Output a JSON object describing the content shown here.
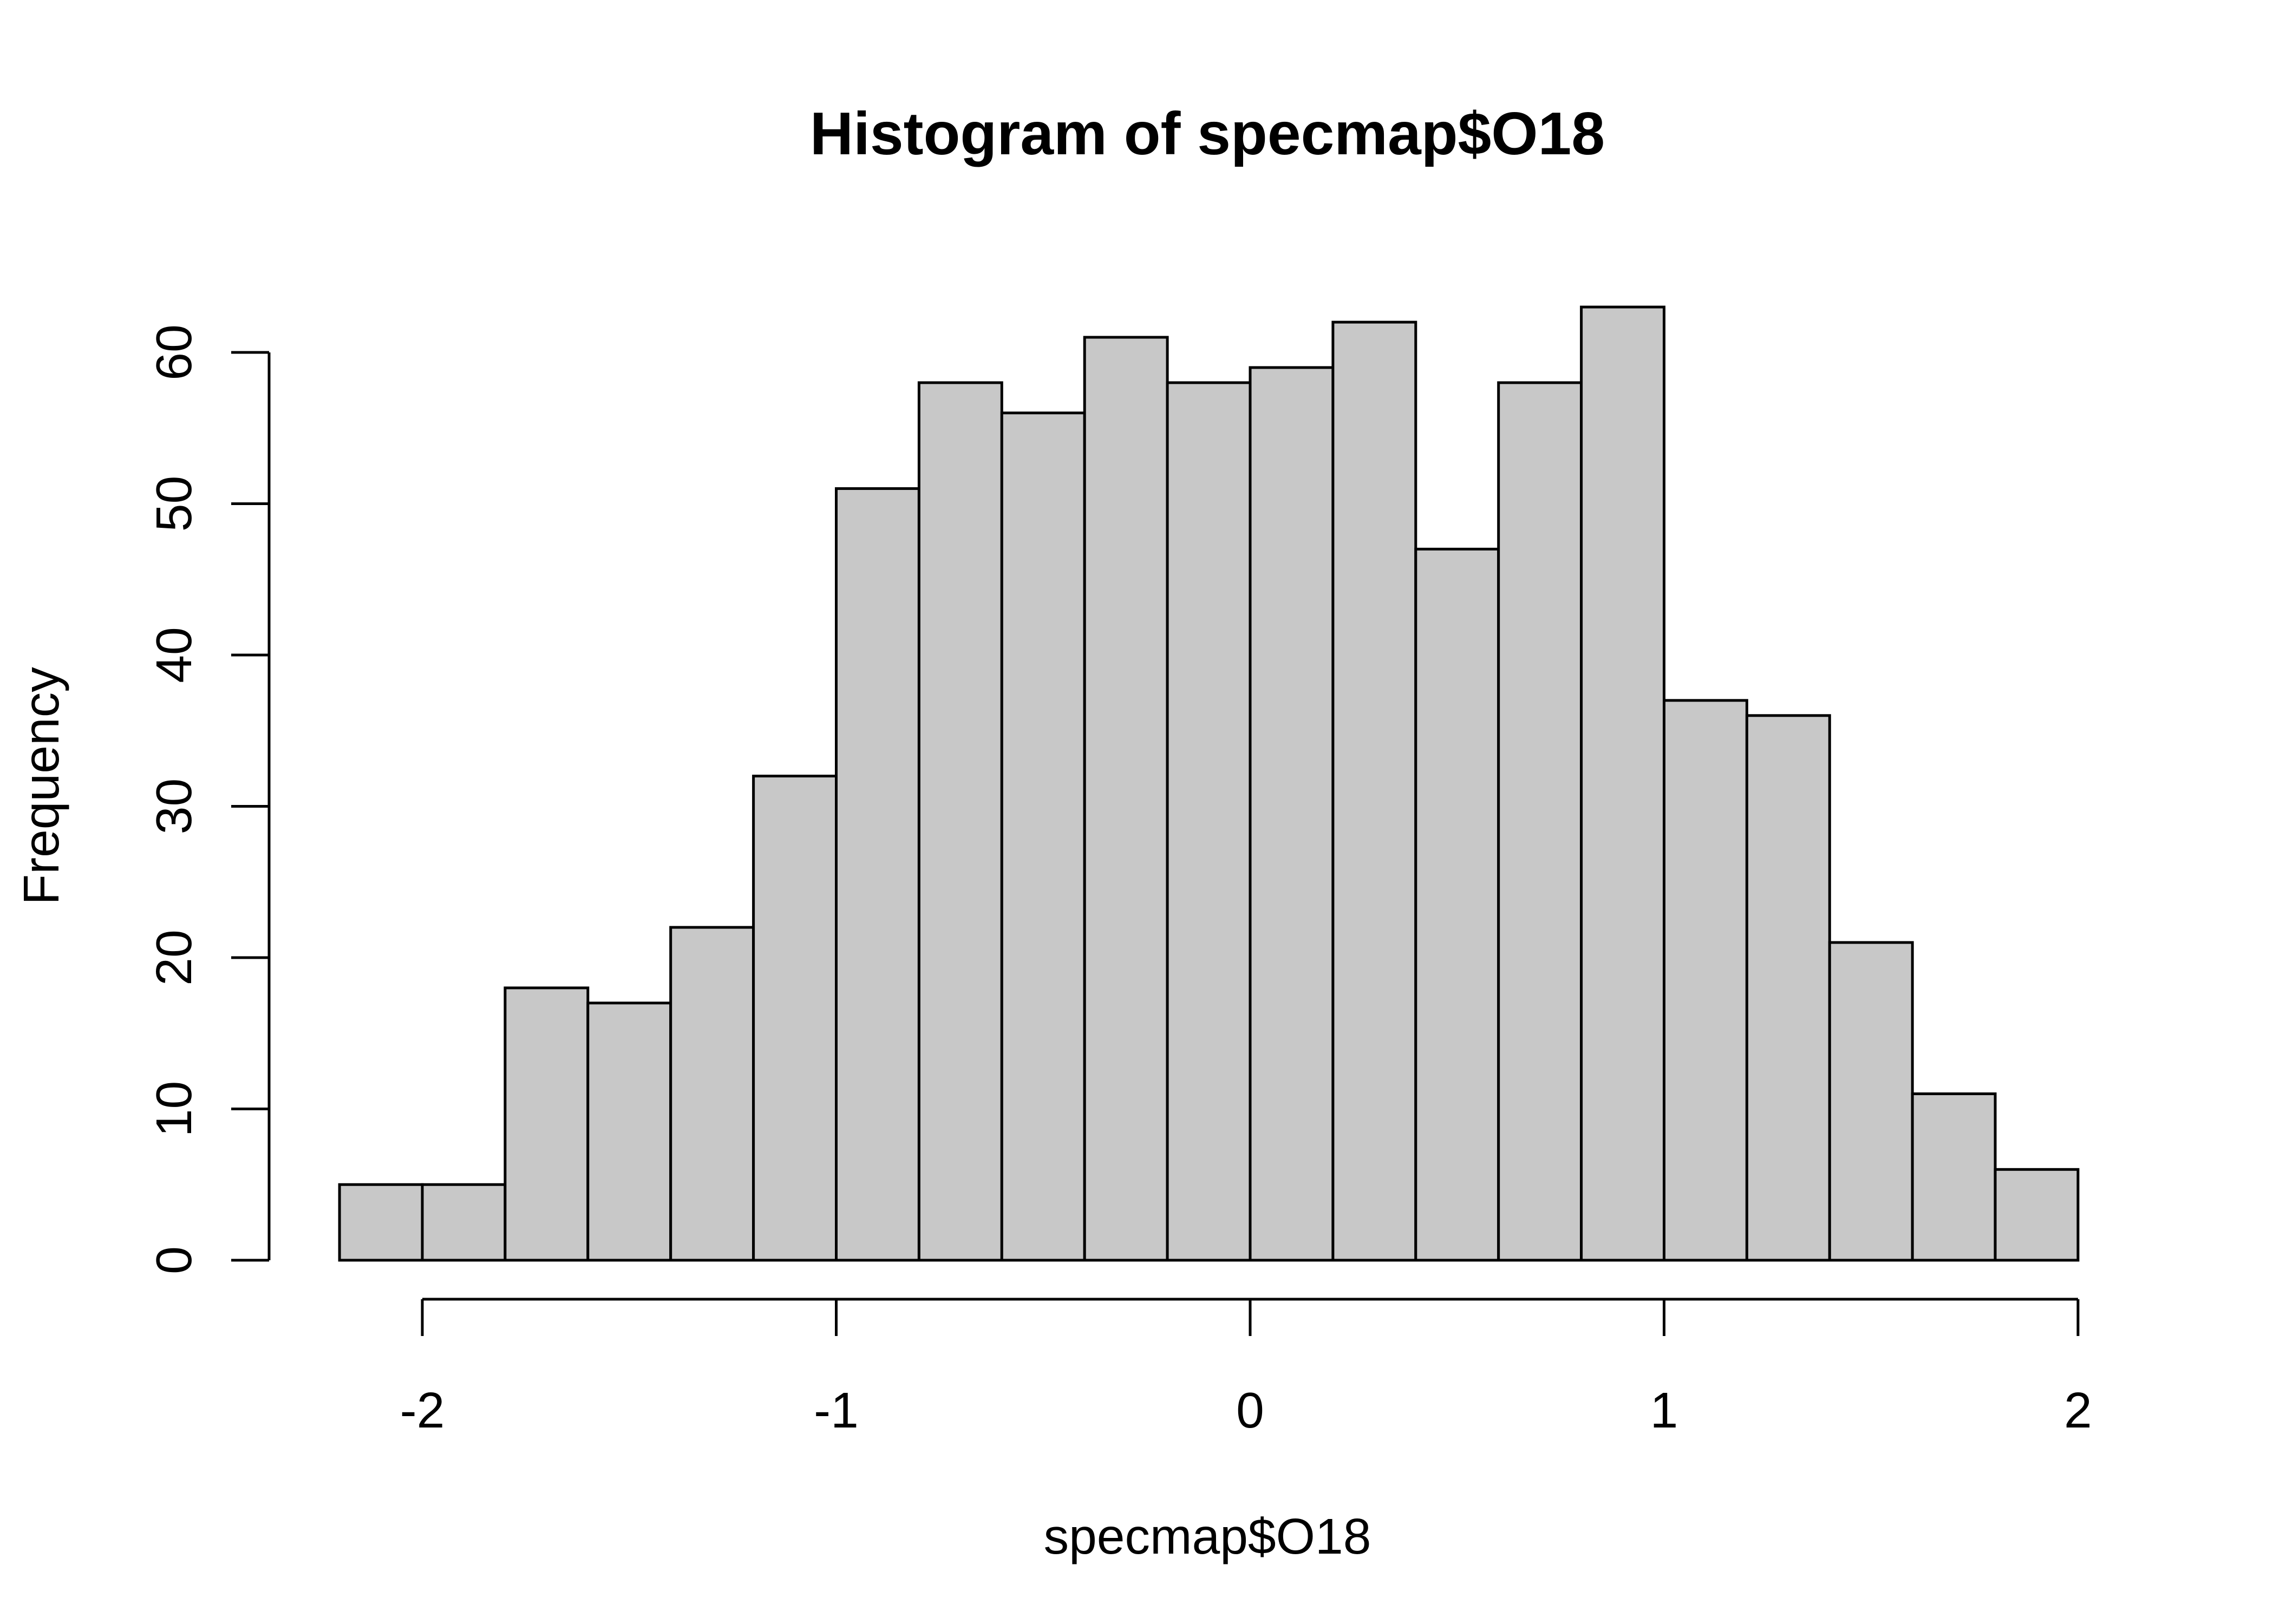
{
  "chart_data": {
    "type": "bar",
    "title": "Histogram of specmap$O18",
    "xlabel": "specmap$O18",
    "ylabel": "Frequency",
    "bins": [
      {
        "from": -2.2,
        "to": -2.0,
        "count": 5
      },
      {
        "from": -2.0,
        "to": -1.8,
        "count": 5
      },
      {
        "from": -1.8,
        "to": -1.6,
        "count": 18
      },
      {
        "from": -1.6,
        "to": -1.4,
        "count": 17
      },
      {
        "from": -1.4,
        "to": -1.2,
        "count": 22
      },
      {
        "from": -1.2,
        "to": -1.0,
        "count": 32
      },
      {
        "from": -1.0,
        "to": -0.8,
        "count": 51
      },
      {
        "from": -0.8,
        "to": -0.6,
        "count": 58
      },
      {
        "from": -0.6,
        "to": -0.4,
        "count": 56
      },
      {
        "from": -0.4,
        "to": -0.2,
        "count": 61
      },
      {
        "from": -0.2,
        "to": 0.0,
        "count": 58
      },
      {
        "from": 0.0,
        "to": 0.2,
        "count": 59
      },
      {
        "from": 0.2,
        "to": 0.4,
        "count": 62
      },
      {
        "from": 0.4,
        "to": 0.6,
        "count": 47
      },
      {
        "from": 0.6,
        "to": 0.8,
        "count": 58
      },
      {
        "from": 0.8,
        "to": 1.0,
        "count": 63
      },
      {
        "from": 1.0,
        "to": 1.2,
        "count": 37
      },
      {
        "from": 1.2,
        "to": 1.4,
        "count": 36
      },
      {
        "from": 1.4,
        "to": 1.6,
        "count": 21
      },
      {
        "from": 1.6,
        "to": 1.8,
        "count": 11
      },
      {
        "from": 1.8,
        "to": 2.0,
        "count": 6
      }
    ],
    "xticks": [
      -2,
      -1,
      0,
      1,
      2
    ],
    "xtick_labels": [
      "-2",
      "-1",
      "0",
      "1",
      "2"
    ],
    "yticks": [
      0,
      10,
      20,
      30,
      40,
      50,
      60
    ],
    "ytick_labels": [
      "0",
      "10",
      "20",
      "30",
      "40",
      "50",
      "60"
    ],
    "grid": false,
    "legend": "none",
    "colors": {
      "bar_fill": "#c8c8c8",
      "bar_stroke": "#000000"
    }
  }
}
